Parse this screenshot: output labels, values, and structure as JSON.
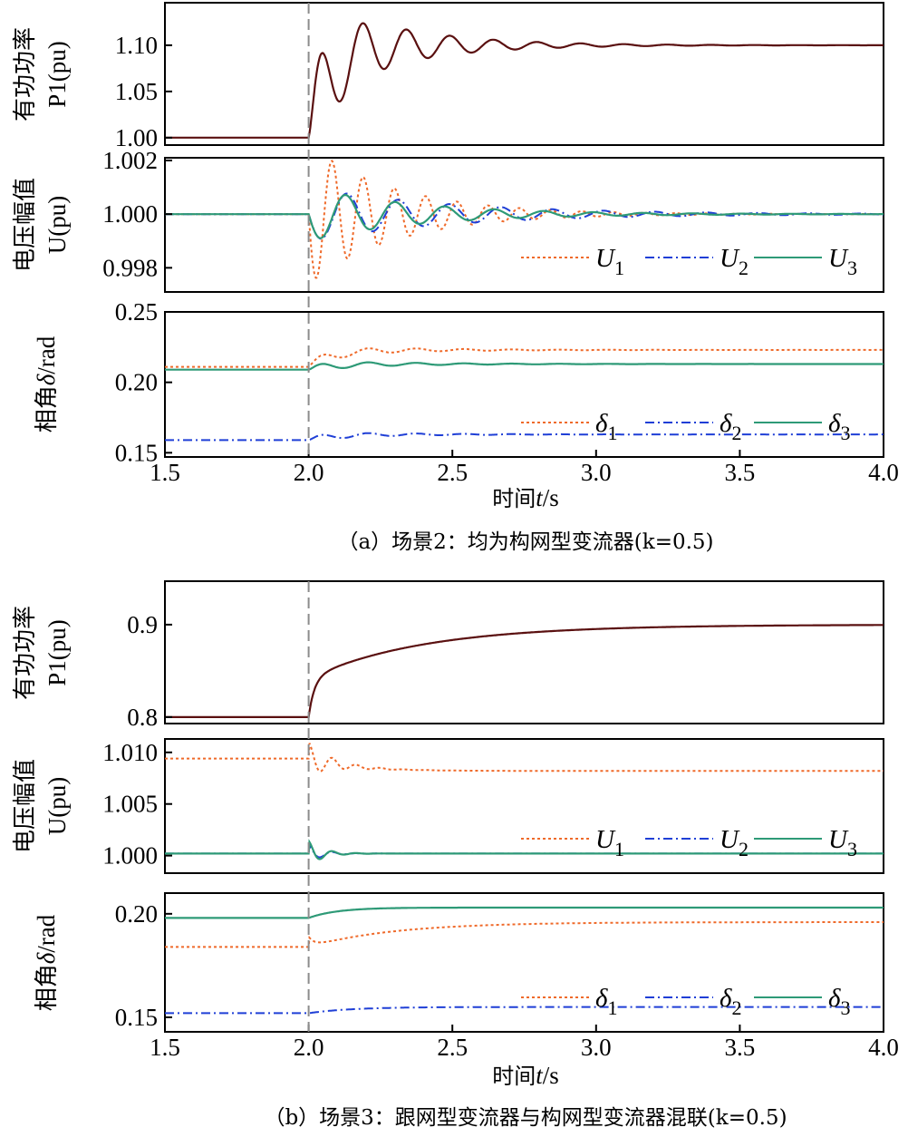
{
  "colors": {
    "U1": "#ef6a2a",
    "U2": "#1f3fd6",
    "U3": "#2e9a77",
    "P1": "#5a1010",
    "fault_line": "#8c8c8c",
    "axes": "#000000"
  },
  "x_axis": {
    "xlim": [
      1.5,
      4.0
    ],
    "ticks": [
      1.5,
      2.0,
      2.5,
      3.0,
      3.5,
      4.0
    ],
    "tick_labels": [
      "1.5",
      "2.0",
      "2.5",
      "3.0",
      "3.5",
      "4.0"
    ],
    "label_prefix": "时间",
    "label_var": "t",
    "label_unit": "/s",
    "event_time": 2.0
  },
  "panels": [
    {
      "caption": "（a）场景2：均为构网型变流器(k=0.5)",
      "subplots": [
        {
          "id": "a-power",
          "ylabel_line1": "有功功率",
          "ylabel_line2": "P1(pu)",
          "ylim": [
            0.992,
            1.146
          ],
          "yticks": [
            1.0,
            1.05,
            1.1
          ],
          "ytick_labels": [
            "1.00",
            "1.05",
            "1.10"
          ],
          "series": [
            {
              "name": "P1",
              "initial": 1.0,
              "final": 1.1,
              "model": "damped",
              "amp": 0.06,
              "freq": 6.6,
              "tau": 0.28,
              "rise": 0.07
            }
          ]
        },
        {
          "id": "a-voltage",
          "ylabel_line1": "电压幅值",
          "ylabel_line2": "U(pu)",
          "ylim": [
            0.9971,
            1.0021
          ],
          "yticks": [
            0.998,
            1.0,
            1.002
          ],
          "ytick_labels": [
            "0.998",
            "1.000",
            "1.002"
          ],
          "legend": [
            "U1",
            "U2",
            "U3"
          ],
          "series": [
            {
              "name": "U1",
              "style": "dotted",
              "initial": 1.0,
              "final": 1.0,
              "model": "oscillation",
              "amp": -0.0026,
              "freq": 9.2,
              "tau": 0.3
            },
            {
              "name": "U2",
              "style": "dashdot",
              "initial": 1.0,
              "final": 1.0,
              "model": "oscillation",
              "amp": -0.001,
              "freq": 5.6,
              "tau": 0.5
            },
            {
              "name": "U3",
              "style": "solid",
              "initial": 1.0,
              "final": 1.0,
              "model": "oscillation",
              "amp": -0.001,
              "freq": 5.8,
              "tau": 0.38
            }
          ]
        },
        {
          "id": "a-angle",
          "ylabel_line1": "相角",
          "ylabel_line2": "δ/rad",
          "ylim": [
            0.147,
            0.25
          ],
          "yticks": [
            0.15,
            0.2,
            0.25
          ],
          "ytick_labels": [
            "0.15",
            "0.20",
            "0.25"
          ],
          "legend": [
            "δ1",
            "δ2",
            "δ3"
          ],
          "series": [
            {
              "name": "δ1",
              "style": "dotted",
              "initial": 0.211,
              "final": 0.223,
              "model": "damped",
              "amp": 0.004,
              "freq": 6.0,
              "tau": 0.3,
              "rise": 0.08
            },
            {
              "name": "δ2",
              "style": "dashdot",
              "initial": 0.159,
              "final": 0.163,
              "model": "damped",
              "amp": 0.0025,
              "freq": 6.0,
              "tau": 0.3,
              "rise": 0.08
            },
            {
              "name": "δ3",
              "style": "solid",
              "initial": 0.209,
              "final": 0.213,
              "model": "damped",
              "amp": 0.003,
              "freq": 6.0,
              "tau": 0.3,
              "rise": 0.08
            }
          ]
        }
      ]
    },
    {
      "caption": "（b）场景3：跟网型变流器与构网型变流器混联(k=0.5)",
      "subplots": [
        {
          "id": "b-power",
          "ylabel_line1": "有功功率",
          "ylabel_line2": "P1(pu)",
          "ylim": [
            0.793,
            0.947
          ],
          "yticks": [
            0.8,
            0.9
          ],
          "ytick_labels": [
            "0.8",
            "0.9"
          ],
          "series": [
            {
              "name": "P1",
              "initial": 0.8,
              "final": 0.9,
              "model": "twostage",
              "jump": 0.042,
              "tjump": 0.02,
              "tau": 0.4
            }
          ]
        },
        {
          "id": "b-voltage",
          "ylabel_line1": "电压幅值",
          "ylabel_line2": "U(pu)",
          "ylim": [
            0.9983,
            1.0113
          ],
          "yticks": [
            1.0,
            1.005,
            1.01
          ],
          "ytick_labels": [
            "1.000",
            "1.005",
            "1.010"
          ],
          "legend": [
            "U1",
            "U2",
            "U3"
          ],
          "series": [
            {
              "name": "U1",
              "style": "dotted",
              "initial": 1.0094,
              "final": 1.0082,
              "model": "spike",
              "spike": 0.0016,
              "tau": 0.08
            },
            {
              "name": "U2",
              "style": "dashdot",
              "initial": 1.0002,
              "final": 1.0002,
              "model": "spike",
              "spike": 0.0008,
              "tau": 0.05
            },
            {
              "name": "U3",
              "style": "solid",
              "initial": 1.0002,
              "final": 1.0002,
              "model": "spike",
              "spike": 0.0012,
              "tau": 0.05
            }
          ]
        },
        {
          "id": "b-angle",
          "ylabel_line1": "相角",
          "ylabel_line2": "δ/rad",
          "ylim": [
            0.143,
            0.21
          ],
          "yticks": [
            0.15,
            0.2
          ],
          "ytick_labels": [
            "0.15",
            "0.20"
          ],
          "legend": [
            "δ1",
            "δ2",
            "δ3"
          ],
          "series": [
            {
              "name": "δ1",
              "style": "dotted",
              "initial": 0.184,
              "final": 0.196,
              "model": "exp",
              "tau": 0.3,
              "jump": 0.005
            },
            {
              "name": "δ2",
              "style": "dashdot",
              "initial": 0.152,
              "final": 0.155,
              "model": "exp",
              "tau": 0.15
            },
            {
              "name": "δ3",
              "style": "solid",
              "initial": 0.198,
              "final": 0.203,
              "model": "exp",
              "tau": 0.1
            }
          ]
        }
      ]
    }
  ]
}
